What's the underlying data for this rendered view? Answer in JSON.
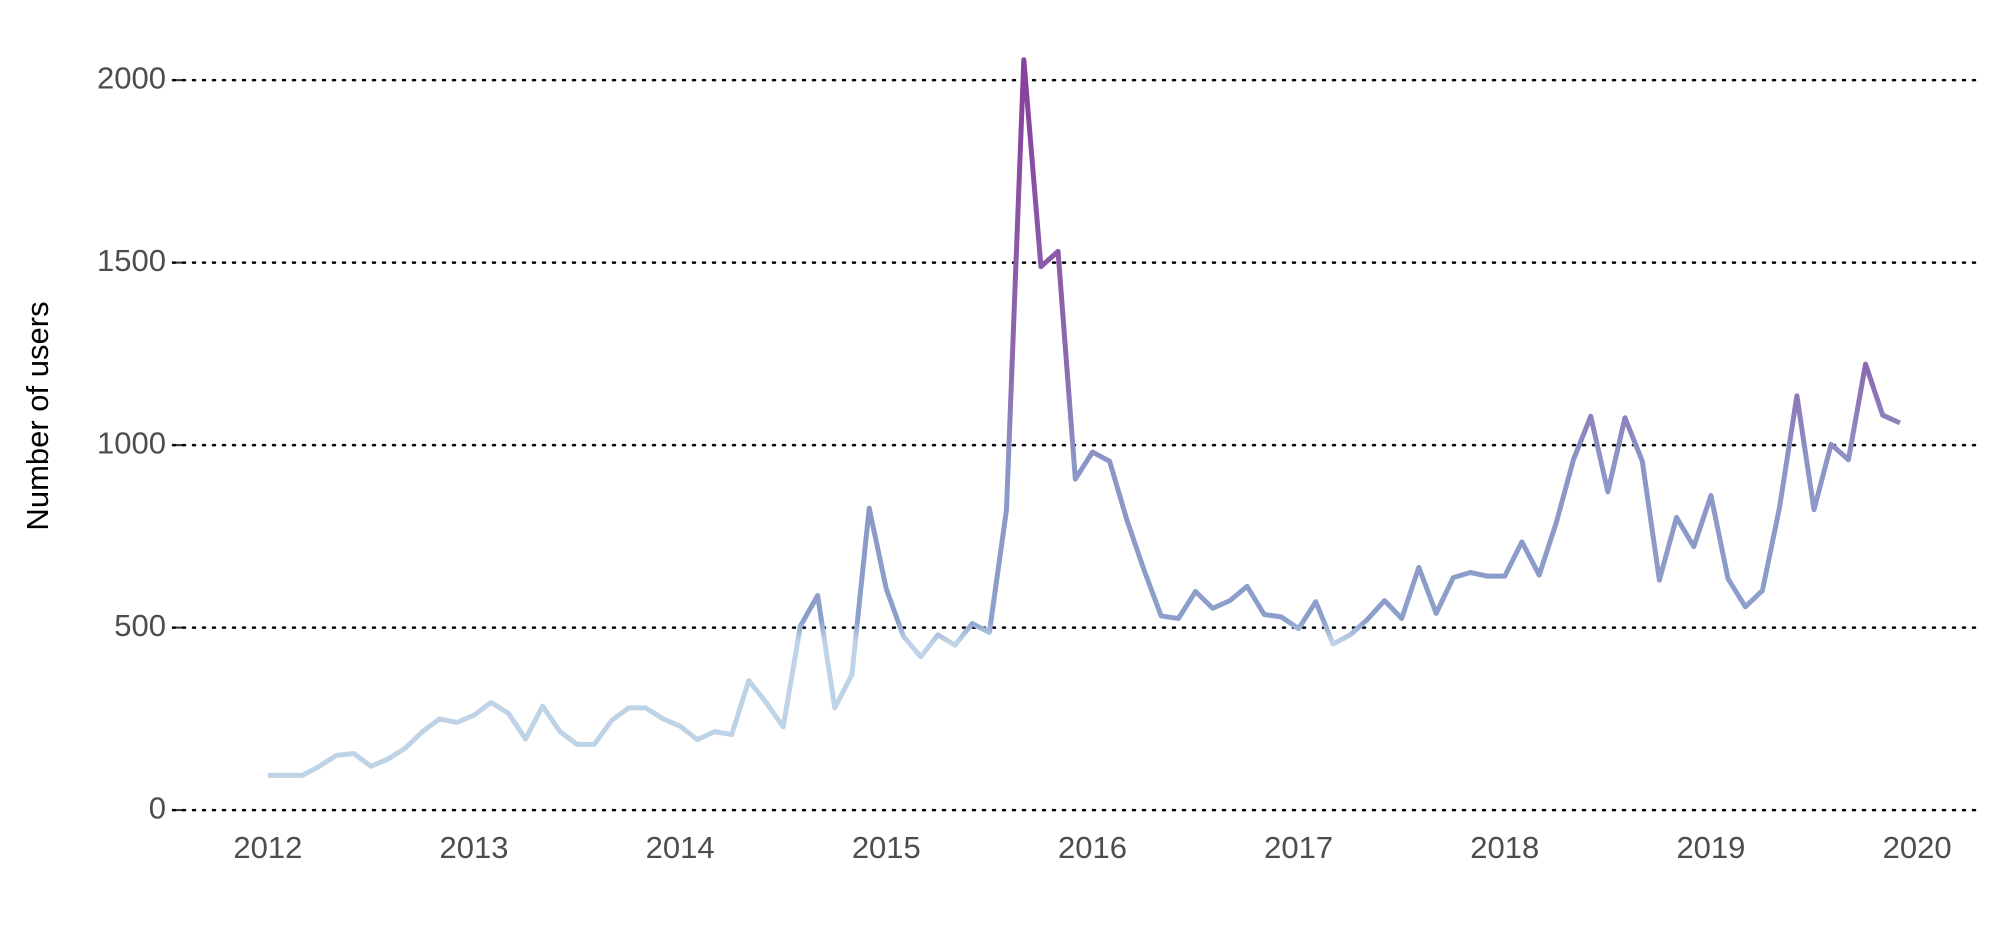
{
  "chart_data": {
    "type": "line",
    "y_label": "Number of users",
    "x": [
      2012,
      2012.083,
      2012.167,
      2012.25,
      2012.333,
      2012.417,
      2012.5,
      2012.583,
      2012.667,
      2012.75,
      2012.833,
      2012.917,
      2013,
      2013.083,
      2013.167,
      2013.25,
      2013.333,
      2013.417,
      2013.5,
      2013.583,
      2013.667,
      2013.75,
      2013.833,
      2013.917,
      2014,
      2014.083,
      2014.167,
      2014.25,
      2014.333,
      2014.417,
      2014.5,
      2014.583,
      2014.667,
      2014.75,
      2014.833,
      2014.917,
      2015,
      2015.083,
      2015.167,
      2015.25,
      2015.333,
      2015.417,
      2015.5,
      2015.583,
      2015.667,
      2015.75,
      2015.833,
      2015.917,
      2016,
      2016.083,
      2016.167,
      2016.25,
      2016.333,
      2016.417,
      2016.5,
      2016.583,
      2016.667,
      2016.75,
      2016.833,
      2016.917,
      2017,
      2017.083,
      2017.167,
      2017.25,
      2017.333,
      2017.417,
      2017.5,
      2017.583,
      2017.667,
      2017.75,
      2017.833,
      2017.917,
      2018,
      2018.083,
      2018.167,
      2018.25,
      2018.333,
      2018.417,
      2018.5,
      2018.583,
      2018.667,
      2018.75,
      2018.833,
      2018.917,
      2019,
      2019.083,
      2019.167,
      2019.25,
      2019.333,
      2019.417,
      2019.5,
      2019.583,
      2019.667,
      2019.75,
      2019.833,
      2019.917
    ],
    "values": [
      95,
      95,
      95,
      120,
      150,
      155,
      120,
      140,
      170,
      215,
      250,
      240,
      260,
      295,
      265,
      195,
      285,
      215,
      180,
      180,
      245,
      280,
      280,
      250,
      230,
      193,
      215,
      207,
      355,
      295,
      228,
      504,
      588,
      280,
      371,
      827,
      606,
      476,
      420,
      480,
      452,
      511,
      487,
      823,
      2056,
      1489,
      1531,
      907,
      981,
      956,
      795,
      658,
      532,
      525,
      599,
      553,
      574,
      613,
      536,
      529,
      497,
      571,
      455,
      480,
      522,
      574,
      525,
      665,
      539,
      637,
      651,
      641,
      641,
      735,
      644,
      788,
      960,
      1079,
      872,
      1075,
      956,
      630,
      802,
      722,
      862,
      634,
      557,
      602,
      830,
      1135,
      823,
      1002,
      960,
      1222,
      1082,
      1061
    ],
    "color_stops": [
      {
        "value": 0,
        "color": "#bfd3e6"
      },
      {
        "value": 460,
        "color": "#bfd3e6"
      },
      {
        "value": 520,
        "color": "#8c9fcb"
      },
      {
        "value": 950,
        "color": "#8c96c6"
      },
      {
        "value": 1200,
        "color": "#8c6bb1"
      },
      {
        "value": 2000,
        "color": "#88419d"
      }
    ],
    "xlim": [
      2011.54,
      2020.31
    ],
    "xticks": [
      2012,
      2013,
      2014,
      2015,
      2016,
      2017,
      2018,
      2019,
      2020
    ],
    "ylim": [
      -60,
      2110
    ],
    "yticks": [
      0,
      500,
      1000,
      1500,
      2000
    ],
    "grid": true
  }
}
